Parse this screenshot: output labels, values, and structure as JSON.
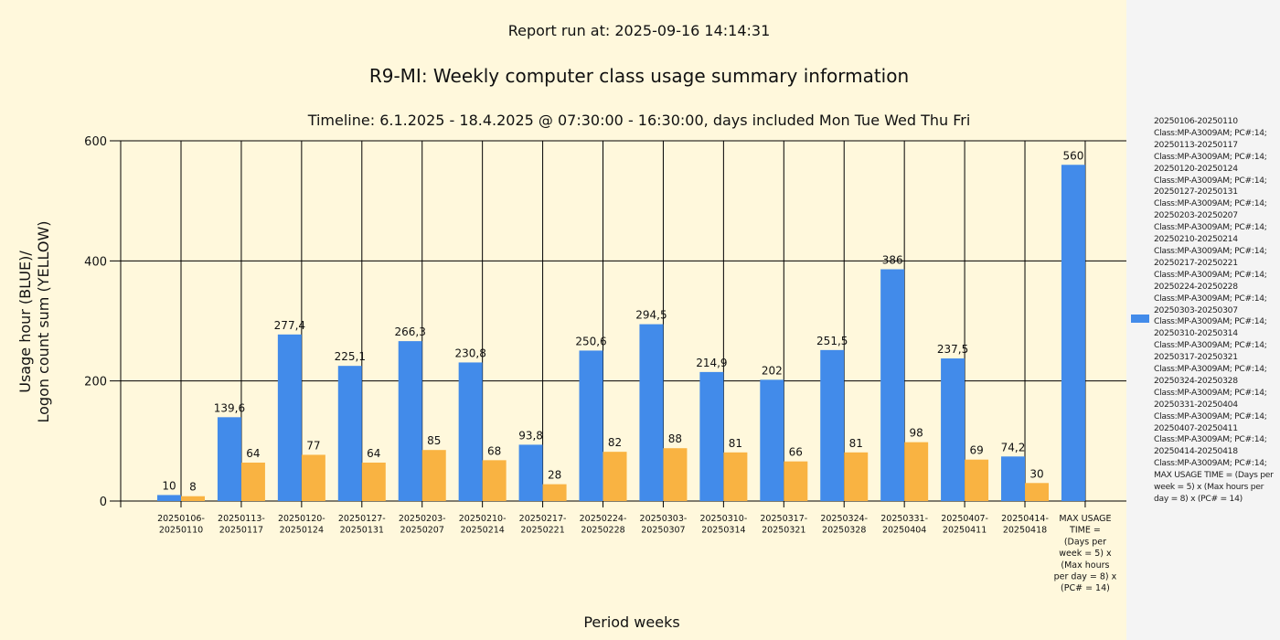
{
  "colors": {
    "usage": "#428BEA",
    "logon": "#F9B342",
    "background": "#FFF8DC",
    "legend_bg": "#F4F4F4"
  },
  "chart_data": {
    "type": "bar",
    "report_run": "Report run at: 2025-09-16 14:14:31",
    "title": "R9-MI: Weekly computer class usage summary information",
    "subtitle": "Timeline:  6.1.2025  - 18.4.2025  @  07:30:00 -  16:30:00, days included Mon Tue Wed Thu Fri",
    "xlabel": "Period weeks",
    "ylabel_lines": [
      "Usage hour (BLUE)/",
      "Logon count sum (YELLOW)"
    ],
    "ylim": [
      0,
      600
    ],
    "yticks": [
      0,
      200,
      400,
      600
    ],
    "grid": true,
    "legend_placement": "right",
    "categories": [
      [
        "20250106-",
        "20250110"
      ],
      [
        "20250113-",
        "20250117"
      ],
      [
        "20250120-",
        "20250124"
      ],
      [
        "20250127-",
        "20250131"
      ],
      [
        "20250203-",
        "20250207"
      ],
      [
        "20250210-",
        "20250214"
      ],
      [
        "20250217-",
        "20250221"
      ],
      [
        "20250224-",
        "20250228"
      ],
      [
        "20250303-",
        "20250307"
      ],
      [
        "20250310-",
        "20250314"
      ],
      [
        "20250317-",
        "20250321"
      ],
      [
        "20250324-",
        "20250328"
      ],
      [
        "20250331-",
        "20250404"
      ],
      [
        "20250407-",
        "20250411"
      ],
      [
        "20250414-",
        "20250418"
      ],
      [
        "MAX USAGE",
        "TIME =",
        "(Days per",
        "week = 5) x",
        "(Max hours",
        "per day = 8) x",
        "(PC# = 14)"
      ]
    ],
    "series": [
      {
        "name": "Usage hour",
        "values": [
          10,
          139.6,
          277.4,
          225.1,
          266.3,
          230.8,
          93.8,
          250.6,
          294.5,
          214.9,
          202,
          251.5,
          386,
          237.5,
          74.2,
          560
        ],
        "labels": [
          "10",
          "139,6",
          "277,4",
          "225,1",
          "266,3",
          "230,8",
          "93,8",
          "250,6",
          "294,5",
          "214,9",
          "202",
          "251,5",
          "386",
          "237,5",
          "74,2",
          "560"
        ]
      },
      {
        "name": "Logon count sum",
        "values": [
          8,
          64,
          77,
          64,
          85,
          68,
          28,
          82,
          88,
          81,
          66,
          81,
          98,
          69,
          30,
          null
        ],
        "labels": [
          "8",
          "64",
          "77",
          "64",
          "85",
          "68",
          "28",
          "82",
          "88",
          "81",
          "66",
          "81",
          "98",
          "69",
          "30",
          ""
        ]
      }
    ]
  },
  "legend": {
    "lines": [
      "20250106-20250110",
      "Class:MP-A3009AM; PC#:14;",
      "20250113-20250117",
      "Class:MP-A3009AM; PC#:14;",
      "20250120-20250124",
      "Class:MP-A3009AM; PC#:14;",
      "20250127-20250131",
      "Class:MP-A3009AM; PC#:14;",
      "20250203-20250207",
      "Class:MP-A3009AM; PC#:14;",
      "20250210-20250214",
      "Class:MP-A3009AM; PC#:14;",
      "20250217-20250221",
      "Class:MP-A3009AM; PC#:14;",
      "20250224-20250228",
      "Class:MP-A3009AM; PC#:14;",
      "20250303-20250307",
      "Class:MP-A3009AM; PC#:14;",
      "20250310-20250314",
      "Class:MP-A3009AM; PC#:14;",
      "20250317-20250321",
      "Class:MP-A3009AM; PC#:14;",
      "20250324-20250328",
      "Class:MP-A3009AM; PC#:14;",
      "20250331-20250404",
      "Class:MP-A3009AM; PC#:14;",
      "20250407-20250411",
      "Class:MP-A3009AM; PC#:14;",
      "20250414-20250418",
      "Class:MP-A3009AM; PC#:14;"
    ],
    "tail": "MAX USAGE TIME =  (Days per week = 5) x (Max hours per day = 8) x (PC# = 14)"
  }
}
